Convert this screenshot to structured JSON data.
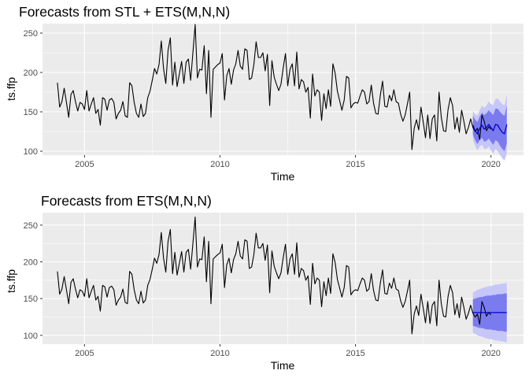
{
  "chart_data": [
    {
      "type": "line",
      "title": "Forecasts from STL +  ETS(M,N,N)",
      "xlabel": "Time",
      "ylabel": "ts.ffp",
      "xlim": [
        2003.45,
        2021.2
      ],
      "ylim": [
        95,
        262
      ],
      "x_ticks": [
        2005,
        2010,
        2015,
        2020
      ],
      "x_tick_labels": [
        "2005",
        "2010",
        "2015",
        "2020"
      ],
      "y_ticks": [
        100,
        150,
        200,
        250
      ],
      "y_tick_labels": [
        "100",
        "150",
        "200",
        "250"
      ],
      "grid": true,
      "background": "#ebebeb",
      "series": [
        {
          "role": "observed",
          "color": "#000000",
          "start": 2004.0,
          "frequency": 12,
          "values": [
            187,
            156,
            163,
            180,
            162,
            143,
            172,
            177,
            163,
            151,
            162,
            160,
            153,
            177,
            151,
            160,
            168,
            148,
            153,
            133,
            168,
            166,
            152,
            165,
            167,
            162,
            141,
            148,
            152,
            163,
            145,
            143,
            187,
            183,
            162,
            148,
            143,
            160,
            144,
            148,
            168,
            176,
            190,
            205,
            198,
            210,
            240,
            205,
            186,
            228,
            244,
            184,
            213,
            182,
            198,
            214,
            186,
            213,
            217,
            190,
            225,
            261,
            193,
            204,
            203,
            234,
            173,
            228,
            143,
            204,
            207,
            210,
            212,
            224,
            165,
            196,
            205,
            185,
            203,
            211,
            228,
            208,
            204,
            230,
            228,
            191,
            193,
            210,
            239,
            219,
            219,
            225,
            202,
            223,
            158,
            215,
            194,
            185,
            177,
            185,
            206,
            224,
            183,
            204,
            211,
            183,
            226,
            179,
            191,
            188,
            175,
            181,
            142,
            198,
            170,
            178,
            175,
            139,
            173,
            154,
            178,
            157,
            211,
            199,
            176,
            164,
            152,
            165,
            195,
            193,
            155,
            160,
            162,
            161,
            170,
            178,
            175,
            160,
            163,
            184,
            161,
            148,
            147,
            171,
            189,
            157,
            156,
            171,
            164,
            178,
            163,
            161,
            147,
            138,
            146,
            160,
            175,
            102,
            129,
            140,
            127,
            156,
            137,
            117,
            146,
            116,
            141,
            146,
            113,
            175,
            143,
            126,
            125,
            153,
            168,
            158,
            128,
            143,
            124,
            152,
            138,
            122,
            130,
            141,
            130,
            125,
            129,
            115,
            146,
            138,
            126,
            131,
            128
          ]
        },
        {
          "role": "point_forecast",
          "color": "#0000cc",
          "start": 2019.3333,
          "frequency": 12,
          "values": [
            133,
            126,
            122,
            129,
            133,
            128,
            130,
            134,
            130,
            126,
            134,
            133,
            128,
            124,
            122,
            134
          ]
        },
        {
          "role": "interval_80",
          "color": "#7b7bf0",
          "start": 2019.3333,
          "frequency": 12,
          "lower": [
            121,
            114,
            109,
            114,
            117,
            112,
            113,
            116,
            112,
            108,
            114,
            112,
            107,
            103,
            100,
            110
          ],
          "upper": [
            145,
            140,
            137,
            144,
            149,
            146,
            148,
            152,
            149,
            146,
            154,
            154,
            150,
            147,
            145,
            158
          ]
        },
        {
          "role": "interval_95",
          "color": "#c6c6f8",
          "start": 2019.3333,
          "frequency": 12,
          "lower": [
            115,
            107,
            101,
            106,
            108,
            103,
            103,
            106,
            101,
            97,
            103,
            100,
            95,
            91,
            88,
            97
          ],
          "upper": [
            151,
            147,
            145,
            152,
            158,
            155,
            158,
            163,
            160,
            158,
            166,
            167,
            163,
            160,
            158,
            172
          ]
        }
      ]
    },
    {
      "type": "line",
      "title": "Forecasts from ETS(M,N,N)",
      "xlabel": "Time",
      "ylabel": "ts.ffp",
      "xlim": [
        2003.45,
        2021.2
      ],
      "ylim": [
        88,
        267
      ],
      "x_ticks": [
        2005,
        2010,
        2015,
        2020
      ],
      "x_tick_labels": [
        "2005",
        "2010",
        "2015",
        "2020"
      ],
      "y_ticks": [
        100,
        150,
        200,
        250
      ],
      "y_tick_labels": [
        "100",
        "150",
        "200",
        "250"
      ],
      "grid": true,
      "background": "#ebebeb",
      "series": [
        {
          "role": "observed",
          "color": "#000000",
          "start": 2004.0,
          "frequency": 12,
          "values": [
            187,
            156,
            163,
            180,
            162,
            143,
            172,
            177,
            163,
            151,
            162,
            160,
            153,
            177,
            151,
            160,
            168,
            148,
            153,
            133,
            168,
            166,
            152,
            165,
            167,
            162,
            141,
            148,
            152,
            163,
            145,
            143,
            187,
            183,
            162,
            148,
            143,
            160,
            144,
            148,
            168,
            176,
            190,
            205,
            198,
            210,
            240,
            205,
            186,
            228,
            244,
            184,
            213,
            182,
            198,
            214,
            186,
            213,
            217,
            190,
            225,
            261,
            193,
            204,
            203,
            234,
            173,
            228,
            143,
            204,
            207,
            210,
            212,
            224,
            165,
            196,
            205,
            185,
            203,
            211,
            228,
            208,
            204,
            230,
            228,
            191,
            193,
            210,
            239,
            219,
            219,
            225,
            202,
            223,
            158,
            215,
            194,
            185,
            177,
            185,
            206,
            224,
            183,
            204,
            211,
            183,
            226,
            179,
            191,
            188,
            175,
            181,
            142,
            198,
            170,
            178,
            175,
            139,
            173,
            154,
            178,
            157,
            211,
            199,
            176,
            164,
            152,
            165,
            195,
            193,
            155,
            160,
            162,
            161,
            170,
            178,
            175,
            160,
            163,
            184,
            161,
            148,
            147,
            171,
            189,
            157,
            156,
            171,
            164,
            178,
            163,
            161,
            147,
            138,
            146,
            160,
            175,
            102,
            129,
            140,
            127,
            156,
            137,
            117,
            146,
            116,
            141,
            146,
            113,
            175,
            143,
            126,
            125,
            153,
            168,
            158,
            128,
            143,
            124,
            152,
            138,
            122,
            130,
            141,
            130,
            125,
            129,
            115,
            146,
            138,
            126,
            131,
            128
          ]
        },
        {
          "role": "point_forecast",
          "color": "#0000cc",
          "start": 2019.3333,
          "frequency": 12,
          "values": [
            131,
            131,
            131,
            131,
            131,
            131,
            131,
            131,
            131,
            131,
            131,
            131,
            131,
            131,
            131,
            131
          ]
        },
        {
          "role": "interval_80",
          "color": "#7b7bf0",
          "start": 2019.3333,
          "frequency": 12,
          "lower": [
            113,
            112,
            111,
            110,
            110,
            109,
            108,
            108,
            108,
            107,
            107,
            106,
            106,
            106,
            105,
            105
          ],
          "upper": [
            149,
            150,
            151,
            152,
            152,
            153,
            154,
            154,
            154,
            155,
            155,
            156,
            156,
            156,
            157,
            157
          ]
        },
        {
          "role": "interval_95",
          "color": "#c6c6f8",
          "start": 2019.3333,
          "frequency": 12,
          "lower": [
            104,
            102,
            100,
            99,
            98,
            97,
            96,
            95,
            95,
            94,
            93,
            93,
            92,
            92,
            91,
            91
          ],
          "upper": [
            158,
            160,
            162,
            163,
            164,
            165,
            166,
            167,
            167,
            168,
            169,
            169,
            170,
            170,
            171,
            171
          ]
        }
      ]
    }
  ]
}
